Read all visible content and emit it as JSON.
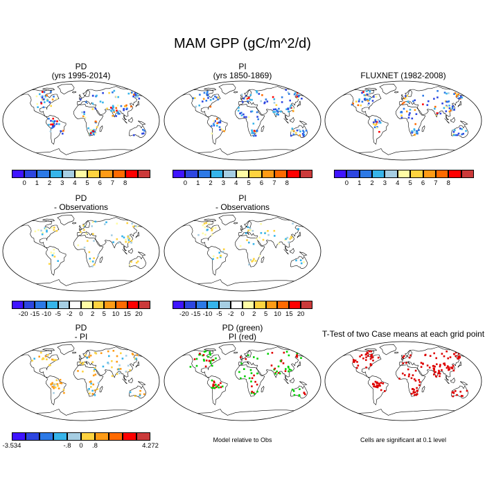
{
  "title": "MAM GPP (gC/m^2/d)",
  "panels": [
    {
      "id": "pd",
      "title_line1": "PD",
      "title_line2": "(yrs 1995-2014)",
      "scheme": "seq"
    },
    {
      "id": "pi",
      "title_line1": "PI",
      "title_line2": "(yrs 1850-1869)",
      "scheme": "seq"
    },
    {
      "id": "fluxnet",
      "title_line1": "",
      "title_line2": "FLUXNET (1982-2008)",
      "scheme": "seq"
    },
    {
      "id": "pd-obs",
      "title_line1": "PD",
      "title_line2": "- Observations",
      "scheme": "diff"
    },
    {
      "id": "pi-obs",
      "title_line1": "PI",
      "title_line2": "- Observations",
      "scheme": "diff"
    },
    {
      "id": "pd-pi",
      "title_line1": "PD",
      "title_line2": "- PI",
      "scheme": "pdpi"
    },
    {
      "id": "pd-green-pi-red",
      "title_line1": "PD (green)",
      "title_line2": "PI (red)",
      "scheme": "greenred"
    },
    {
      "id": "ttest",
      "title_line1": "",
      "title_line2": "T-Test of two Case means at each grid point",
      "scheme": "sig"
    }
  ],
  "colorbars": {
    "seq_colors": [
      "#3f14ff",
      "#2d46e0",
      "#2c79e6",
      "#36b4ea",
      "#a6cee3",
      "#fffca5",
      "#fed340",
      "#fe9b16",
      "#ff6a00",
      "#fe0000",
      "#cb3a3a"
    ],
    "seq_ticks": [
      "0",
      "1",
      "2",
      "3",
      "4",
      "5",
      "6",
      "7",
      "8"
    ],
    "diff_colors": [
      "#3f14ff",
      "#2d46e0",
      "#2c79e6",
      "#36b4ea",
      "#a6cee3",
      "#ffffff",
      "#fffca5",
      "#fed340",
      "#fe9b16",
      "#ff6a00",
      "#fe0000",
      "#cb3a3a"
    ],
    "diff_ticks": [
      "-20",
      "-15",
      "-10",
      "-5",
      "-2",
      "0",
      "2",
      "5",
      "10",
      "15",
      "20"
    ],
    "pdpi_colors": [
      "#3f14ff",
      "#2d46e0",
      "#2c79e6",
      "#36b4ea",
      "#a6cee3",
      "#fed340",
      "#fe9b16",
      "#ff6a00",
      "#fe0000",
      "#cb3a3a"
    ],
    "pdpi_ticks": [
      "-3.534",
      "-.8",
      "0",
      ".8",
      "4.272"
    ]
  },
  "notes": {
    "model_relative": "Model relative to Obs",
    "significance": "Cells are significant at 0.1 level"
  }
}
